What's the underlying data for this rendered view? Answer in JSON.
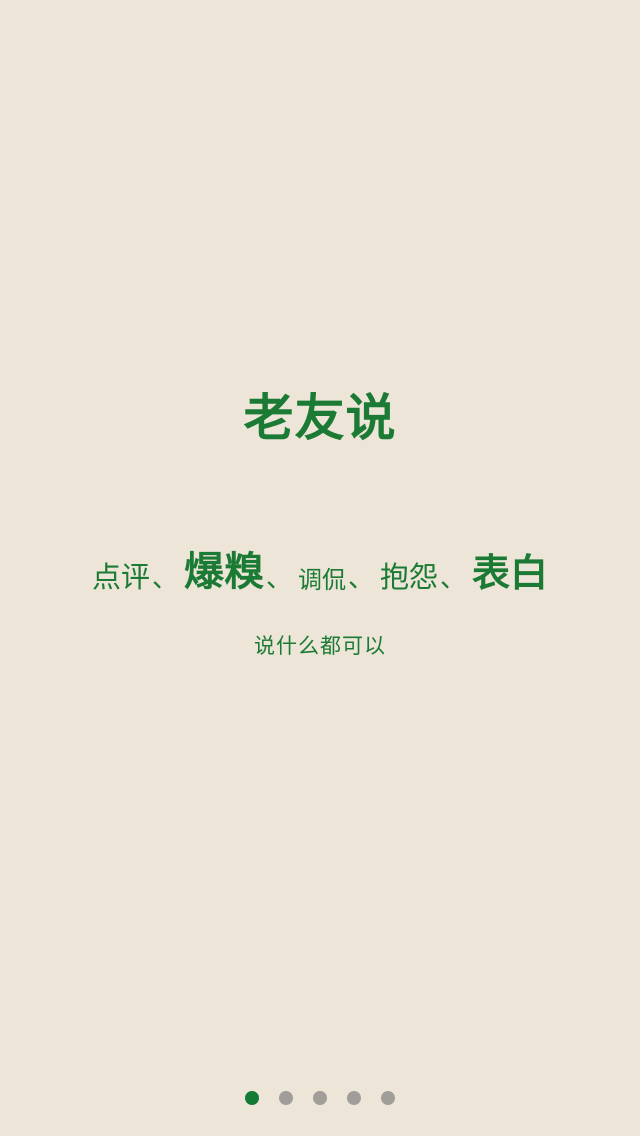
{
  "app": {
    "title": "老友说"
  },
  "tagline": {
    "items": [
      {
        "text": "点评",
        "size": "md"
      },
      {
        "text": "、",
        "size": "sep"
      },
      {
        "text": "爆糗",
        "size": "lg"
      },
      {
        "text": "、",
        "size": "sep"
      },
      {
        "text": "调侃",
        "size": "sm"
      },
      {
        "text": "、",
        "size": "sep"
      },
      {
        "text": "抱怨",
        "size": "md"
      },
      {
        "text": "、",
        "size": "sep"
      },
      {
        "text": "表白",
        "size": "xl"
      }
    ]
  },
  "subtitle": "说什么都可以",
  "pager": {
    "page_count": 5,
    "active_index": 0
  },
  "colors": {
    "background": "#ede5d8",
    "accent": "#1b7a33",
    "dot_active": "#137a35",
    "dot_inactive": "#a19d98"
  }
}
